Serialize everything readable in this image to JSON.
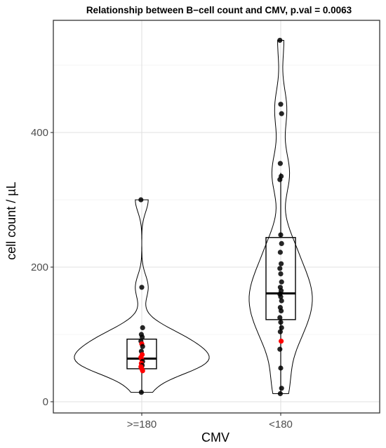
{
  "chart_data": {
    "type": "violin",
    "title": "Relationship between B−cell count and CMV, p.val = 0.0063",
    "xlabel": "CMV",
    "ylabel": "cell count / µL",
    "categories": [
      ">=180",
      "<180"
    ],
    "ylim": [
      0,
      550
    ],
    "yticks": [
      0,
      200,
      400
    ],
    "grid": true,
    "groups": [
      {
        "category": ">=180",
        "violin_range": [
          14,
          300
        ],
        "box": {
          "q1": 49,
          "median": 64,
          "q3": 93,
          "whisker_low": 14,
          "whisker_high": 93
        },
        "points": [
          {
            "y": 300,
            "red": false
          },
          {
            "y": 170,
            "red": false
          },
          {
            "y": 110,
            "red": false
          },
          {
            "y": 100,
            "red": false
          },
          {
            "y": 96,
            "red": false
          },
          {
            "y": 90,
            "red": false
          },
          {
            "y": 86,
            "red": true
          },
          {
            "y": 82,
            "red": false
          },
          {
            "y": 75,
            "red": false
          },
          {
            "y": 70,
            "red": true
          },
          {
            "y": 66,
            "red": true
          },
          {
            "y": 63,
            "red": true
          },
          {
            "y": 60,
            "red": false
          },
          {
            "y": 57,
            "red": true
          },
          {
            "y": 54,
            "red": false
          },
          {
            "y": 52,
            "red": true
          },
          {
            "y": 49,
            "red": true
          },
          {
            "y": 46,
            "red": true
          },
          {
            "y": 14,
            "red": false
          }
        ]
      },
      {
        "category": "<180",
        "violin_range": [
          12,
          537
        ],
        "box": {
          "q1": 122,
          "median": 161,
          "q3": 244,
          "whisker_low": 12,
          "whisker_high": 340
        },
        "points": [
          {
            "y": 537,
            "red": false
          },
          {
            "y": 442,
            "red": false
          },
          {
            "y": 428,
            "red": false
          },
          {
            "y": 354,
            "red": false
          },
          {
            "y": 335,
            "red": false
          },
          {
            "y": 330,
            "red": false
          },
          {
            "y": 248,
            "red": false
          },
          {
            "y": 235,
            "red": false
          },
          {
            "y": 222,
            "red": false
          },
          {
            "y": 205,
            "red": false
          },
          {
            "y": 198,
            "red": false
          },
          {
            "y": 190,
            "red": false
          },
          {
            "y": 178,
            "red": false
          },
          {
            "y": 170,
            "red": false
          },
          {
            "y": 165,
            "red": false
          },
          {
            "y": 160,
            "red": false
          },
          {
            "y": 156,
            "red": false
          },
          {
            "y": 150,
            "red": false
          },
          {
            "y": 140,
            "red": false
          },
          {
            "y": 135,
            "red": false
          },
          {
            "y": 125,
            "red": false
          },
          {
            "y": 118,
            "red": false
          },
          {
            "y": 110,
            "red": false
          },
          {
            "y": 104,
            "red": false
          },
          {
            "y": 90,
            "red": true
          },
          {
            "y": 78,
            "red": false
          },
          {
            "y": 50,
            "red": false
          },
          {
            "y": 20,
            "red": false
          },
          {
            "y": 12,
            "red": false
          }
        ]
      }
    ],
    "colors": {
      "point": "#000000",
      "highlight": "#ff0000",
      "violin": "#000000",
      "box": "#000000"
    }
  }
}
